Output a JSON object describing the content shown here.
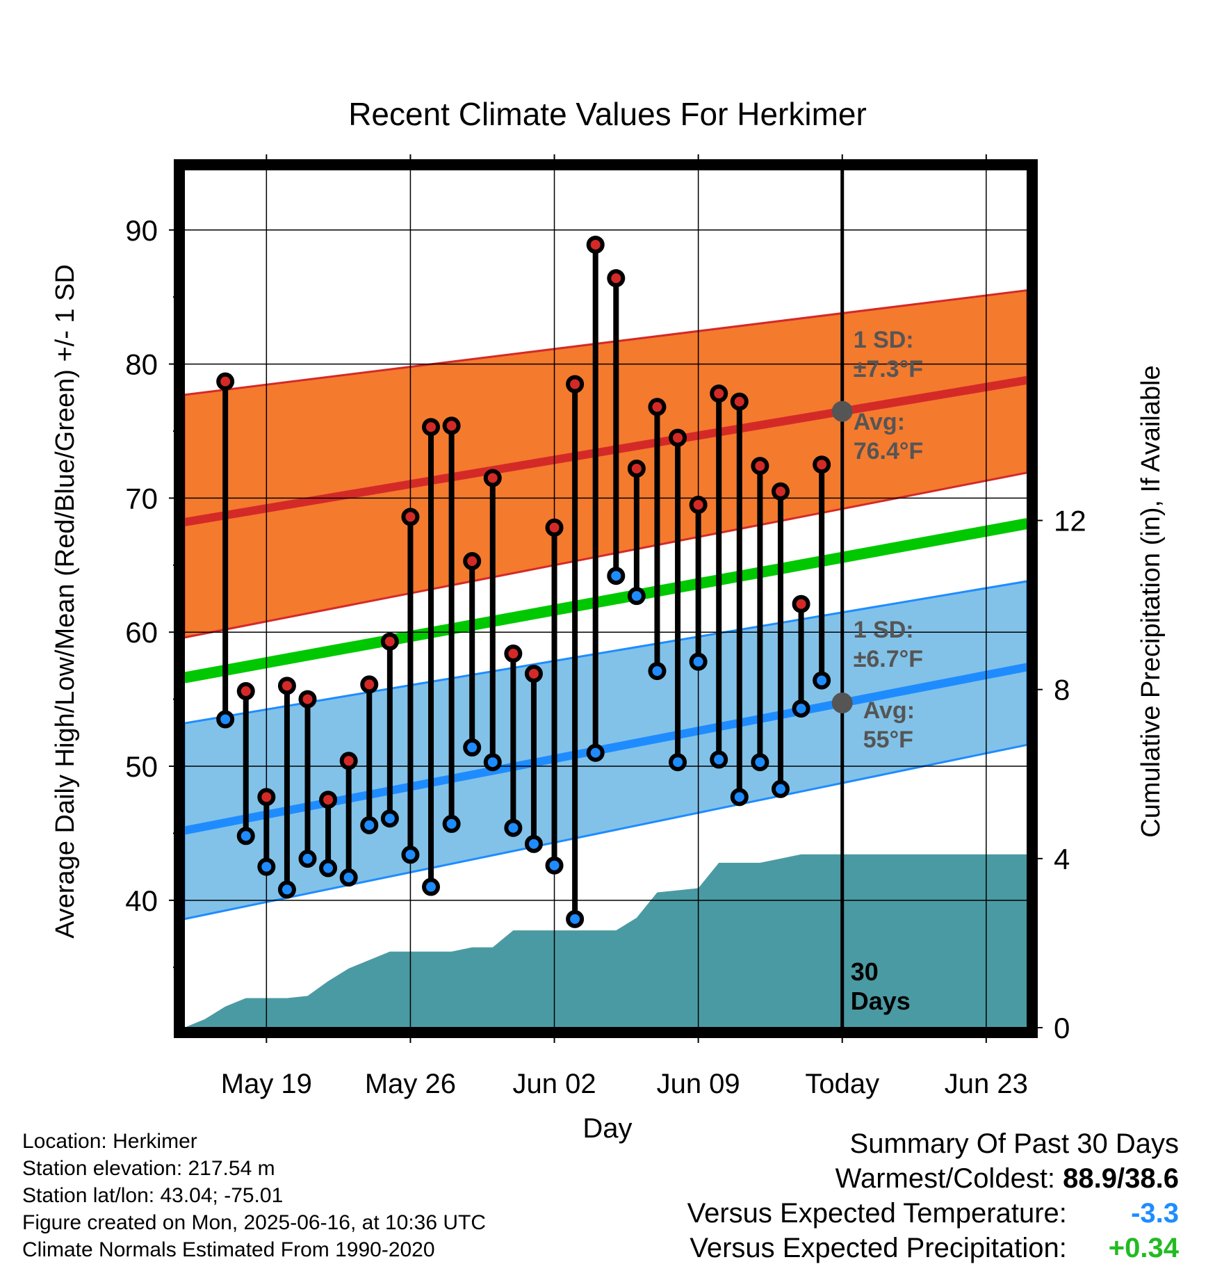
{
  "chart_data": {
    "type": "line",
    "title": "Recent Climate Values For Herkimer",
    "xlabel": "Day",
    "ylabel": "Average Daily High/Low/Mean (Red/Blue/Green) +/- 1 SD",
    "y2label": "Cumulative Precipitation (in), If Available",
    "x_tick_labels": [
      "May 19",
      "May 26",
      "Jun 02",
      "Jun 09",
      "Today",
      "Jun 23"
    ],
    "x_tick_dates": [
      "2025-05-19",
      "2025-05-26",
      "2025-06-02",
      "2025-06-09",
      "2025-06-16",
      "2025-06-23"
    ],
    "xlim": [
      "2025-05-15",
      "2025-06-25"
    ],
    "ylim": [
      30.5,
      94.5
    ],
    "y_ticks": [
      40,
      50,
      60,
      70,
      80,
      90
    ],
    "y2lim": [
      0,
      20.3
    ],
    "y2_ticks": [
      0,
      4,
      8,
      12
    ],
    "grid": true,
    "today": "2025-06-16",
    "days_label": [
      "30",
      "Days"
    ],
    "daily_series": {
      "dates": [
        "2025-05-17",
        "2025-05-18",
        "2025-05-19",
        "2025-05-20",
        "2025-05-21",
        "2025-05-22",
        "2025-05-23",
        "2025-05-24",
        "2025-05-25",
        "2025-05-26",
        "2025-05-27",
        "2025-05-28",
        "2025-05-29",
        "2025-05-30",
        "2025-05-31",
        "2025-06-01",
        "2025-06-02",
        "2025-06-03",
        "2025-06-04",
        "2025-06-05",
        "2025-06-06",
        "2025-06-07",
        "2025-06-08",
        "2025-06-09",
        "2025-06-10",
        "2025-06-11",
        "2025-06-12",
        "2025-06-13",
        "2025-06-14",
        "2025-06-15"
      ],
      "high": [
        78.7,
        55.6,
        47.7,
        56.0,
        55.0,
        47.5,
        50.4,
        56.1,
        59.3,
        68.6,
        75.3,
        75.4,
        65.3,
        71.5,
        58.4,
        56.9,
        67.8,
        78.5,
        88.9,
        86.4,
        72.2,
        76.8,
        74.5,
        69.5,
        77.8,
        77.2,
        72.4,
        70.5,
        62.1,
        72.5
      ],
      "low": [
        53.5,
        44.8,
        42.5,
        40.8,
        43.1,
        42.4,
        41.7,
        45.6,
        46.1,
        43.4,
        41.0,
        45.7,
        51.4,
        50.3,
        45.4,
        44.2,
        42.6,
        38.6,
        51.0,
        64.2,
        62.7,
        57.1,
        50.3,
        57.8,
        50.5,
        47.7,
        50.3,
        48.3,
        54.3,
        56.4
      ]
    },
    "normals": {
      "dates": [
        "2025-05-15",
        "2025-06-25"
      ],
      "high_avg": [
        68.2,
        78.8
      ],
      "high_sd_upper": [
        77.7,
        85.5
      ],
      "high_sd_lower": [
        59.6,
        71.9
      ],
      "mean_avg": [
        56.6,
        68.1
      ],
      "low_avg": [
        45.2,
        57.4
      ],
      "low_sd_upper": [
        53.2,
        63.8
      ],
      "low_sd_lower": [
        38.6,
        51.6
      ]
    },
    "precipitation_cumulative": {
      "dates": [
        "2025-05-15",
        "2025-05-16",
        "2025-05-17",
        "2025-05-18",
        "2025-05-19",
        "2025-05-20",
        "2025-05-21",
        "2025-05-22",
        "2025-05-23",
        "2025-05-24",
        "2025-05-25",
        "2025-05-26",
        "2025-05-27",
        "2025-05-28",
        "2025-05-29",
        "2025-05-30",
        "2025-05-31",
        "2025-06-01",
        "2025-06-02",
        "2025-06-03",
        "2025-06-04",
        "2025-06-05",
        "2025-06-06",
        "2025-06-07",
        "2025-06-08",
        "2025-06-09",
        "2025-06-10",
        "2025-06-11",
        "2025-06-12",
        "2025-06-13",
        "2025-06-14",
        "2025-06-15",
        "2025-06-16",
        "2025-06-25"
      ],
      "values": [
        0.0,
        0.2,
        0.5,
        0.7,
        0.7,
        0.7,
        0.75,
        1.1,
        1.4,
        1.6,
        1.8,
        1.8,
        1.8,
        1.8,
        1.9,
        1.9,
        2.3,
        2.3,
        2.3,
        2.3,
        2.3,
        2.3,
        2.6,
        3.2,
        3.25,
        3.3,
        3.9,
        3.9,
        3.9,
        4.0,
        4.1,
        4.1,
        4.1,
        4.1
      ]
    },
    "annotations": {
      "high_sd": [
        "1 SD:",
        "±7.3°F"
      ],
      "high_avg": [
        "Avg:",
        "76.4°F"
      ],
      "low_sd": [
        "1 SD:",
        "±6.7°F"
      ],
      "low_avg": [
        "Avg:",
        "55°F"
      ]
    },
    "colors": {
      "high_band": "#f47a2e",
      "high_line": "#d42a27",
      "mean_line": "#00c800",
      "low_band": "#82c2e8",
      "low_line": "#1e8cff",
      "precip": "#4a9aa3",
      "annotation": "#555555",
      "high_marker": "#d42a27",
      "low_marker": "#1e8cff"
    }
  },
  "info": {
    "location": "Location: Herkimer",
    "elevation": "Station elevation: 217.54 m",
    "latlon": "Station lat/lon: 43.04; -75.01",
    "created": "Figure created on Mon, 2025-06-16, at 10:36 UTC",
    "normals": "Climate Normals Estimated From 1990-2020"
  },
  "summary": {
    "title": "Summary Of Past 30 Days",
    "warm_cold_label": "Warmest/Coldest:",
    "warm_cold_value": "88.9/38.6",
    "temp_label": "Versus Expected Temperature:",
    "temp_value": "-3.3",
    "temp_color": "#1e8cff",
    "precip_label": "Versus Expected Precipitation:",
    "precip_value": "+0.34",
    "precip_color": "#22bb22"
  }
}
